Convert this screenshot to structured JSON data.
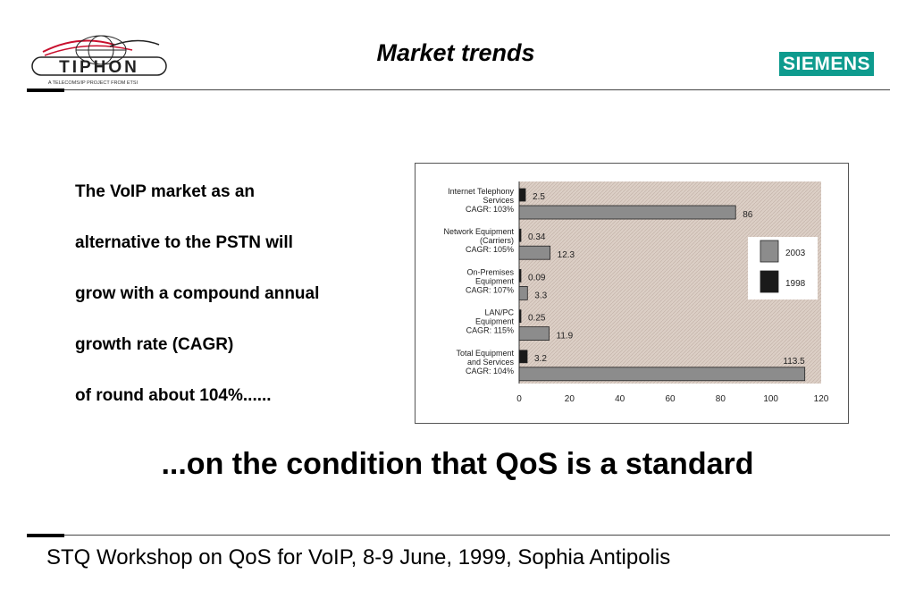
{
  "header": {
    "logo_text": "TIPHON",
    "logo_tagline": "A TELECOMS/IP PROJECT FROM ETSI",
    "title": "Market trends",
    "brand": "SIEMENS"
  },
  "bullets": [
    "The VoIP market as an",
    "alternative to the PSTN will",
    "grow with a compound annual",
    "growth rate (CAGR)",
    "of round about 104%......"
  ],
  "tagline": "...on the condition that QoS is a standard",
  "footer": "STQ Workshop on QoS for VoIP, 8-9 June, 1999, Sophia Antipolis",
  "chart_data": {
    "type": "bar",
    "orientation": "horizontal",
    "categories": [
      [
        "Internet Telephony",
        "Services",
        "CAGR: 103%"
      ],
      [
        "Network Equipment",
        "(Carriers)",
        "CAGR: 105%"
      ],
      [
        "On-Premises",
        "Equipment",
        "CAGR: 107%"
      ],
      [
        "LAN/PC",
        "Equipment",
        "CAGR: 115%"
      ],
      [
        "Total Equipment",
        "and Services",
        "CAGR: 104%"
      ]
    ],
    "series": [
      {
        "name": "1998",
        "color": "#1a1a1a",
        "values": [
          2.5,
          0.34,
          0.09,
          0.25,
          3.2
        ],
        "labels": [
          "2.5",
          "0.34",
          "0.09",
          "0.25",
          "3.2"
        ]
      },
      {
        "name": "2003",
        "color": "#8c8c8c",
        "values": [
          86,
          12.3,
          3.3,
          11.9,
          113.5
        ],
        "labels": [
          "86",
          "12.3",
          "3.3",
          "11.9",
          "113.5"
        ]
      }
    ],
    "xlim": [
      0,
      120
    ],
    "xticks": [
      "0",
      "20",
      "40",
      "60",
      "80",
      "100",
      "120"
    ],
    "legend": [
      "2003",
      "1998"
    ],
    "legend_position": "right",
    "background": "#ddd0c8"
  }
}
